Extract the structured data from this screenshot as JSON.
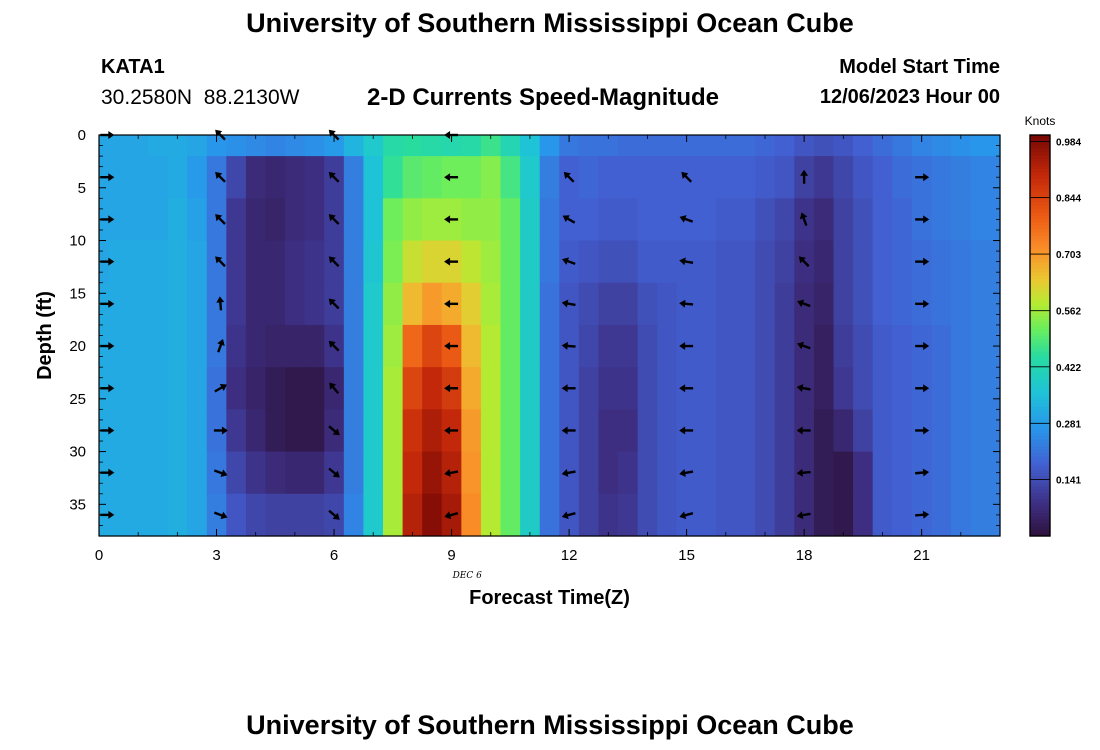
{
  "header": {
    "title": "University of Southern Mississippi Ocean Cube",
    "station_id": "KATA1",
    "station_coords": "30.2580N  88.2130W",
    "product": "2-D Currents Speed-Magnitude",
    "model_start_label": "Model Start Time",
    "model_start_value": "12/06/2023 Hour 00"
  },
  "footer": {
    "title": "University of Southern Mississippi Ocean Cube"
  },
  "chart_data": {
    "type": "heatmap",
    "xlabel": "Forecast Time(Z)",
    "ylabel": "Depth (ft)",
    "date_label": "DEC 6",
    "xlim": [
      0,
      23
    ],
    "ylim": [
      0,
      38
    ],
    "x_ticks": [
      0,
      3,
      6,
      9,
      12,
      15,
      18,
      21
    ],
    "y_ticks": [
      0,
      5,
      10,
      15,
      20,
      25,
      30,
      35
    ],
    "colorbar": {
      "units": "Knots",
      "min": 0,
      "max": 1.0,
      "ticks": [
        0.141,
        0.281,
        0.422,
        0.562,
        0.703,
        0.844,
        0.984
      ]
    },
    "hours": [
      0,
      0.5,
      1,
      1.5,
      2,
      2.5,
      3,
      3.5,
      4,
      4.5,
      5,
      5.5,
      6,
      6.5,
      7,
      7.5,
      8,
      8.5,
      9,
      9.5,
      10,
      10.5,
      11,
      11.5,
      12,
      12.5,
      13,
      13.5,
      14,
      14.5,
      15,
      15.5,
      16,
      16.5,
      17,
      17.5,
      18,
      18.5,
      19,
      19.5,
      20,
      20.5,
      21,
      21.5,
      22,
      22.5
    ],
    "depths": [
      0,
      4,
      8,
      12,
      16,
      20,
      24,
      28,
      32,
      36
    ],
    "speed_knots": [
      [
        0.3,
        0.3,
        0.3,
        0.31,
        0.31,
        0.3,
        0.27,
        0.26,
        0.25,
        0.24,
        0.25,
        0.26,
        0.28,
        0.33,
        0.38,
        0.44,
        0.45,
        0.44,
        0.43,
        0.44,
        0.47,
        0.42,
        0.36,
        0.27,
        0.22,
        0.21,
        0.21,
        0.2,
        0.2,
        0.2,
        0.2,
        0.2,
        0.2,
        0.2,
        0.19,
        0.18,
        0.16,
        0.15,
        0.16,
        0.18,
        0.2,
        0.22,
        0.24,
        0.25,
        0.26,
        0.27
      ],
      [
        0.3,
        0.3,
        0.3,
        0.3,
        0.31,
        0.28,
        0.22,
        0.13,
        0.07,
        0.06,
        0.07,
        0.08,
        0.11,
        0.23,
        0.36,
        0.46,
        0.5,
        0.51,
        0.52,
        0.52,
        0.54,
        0.48,
        0.38,
        0.23,
        0.18,
        0.19,
        0.18,
        0.18,
        0.18,
        0.18,
        0.18,
        0.18,
        0.18,
        0.18,
        0.17,
        0.16,
        0.12,
        0.1,
        0.13,
        0.16,
        0.18,
        0.2,
        0.21,
        0.22,
        0.23,
        0.24
      ],
      [
        0.3,
        0.3,
        0.3,
        0.3,
        0.32,
        0.29,
        0.22,
        0.1,
        0.06,
        0.05,
        0.07,
        0.08,
        0.11,
        0.23,
        0.36,
        0.52,
        0.55,
        0.56,
        0.56,
        0.55,
        0.55,
        0.51,
        0.39,
        0.22,
        0.18,
        0.18,
        0.17,
        0.17,
        0.18,
        0.18,
        0.18,
        0.18,
        0.17,
        0.17,
        0.15,
        0.13,
        0.09,
        0.07,
        0.12,
        0.15,
        0.18,
        0.19,
        0.21,
        0.22,
        0.23,
        0.24
      ],
      [
        0.3,
        0.31,
        0.31,
        0.31,
        0.32,
        0.3,
        0.22,
        0.1,
        0.06,
        0.06,
        0.08,
        0.09,
        0.11,
        0.23,
        0.37,
        0.53,
        0.6,
        0.62,
        0.62,
        0.59,
        0.56,
        0.51,
        0.39,
        0.22,
        0.17,
        0.16,
        0.15,
        0.15,
        0.17,
        0.17,
        0.17,
        0.17,
        0.16,
        0.16,
        0.14,
        0.12,
        0.08,
        0.06,
        0.12,
        0.15,
        0.18,
        0.19,
        0.2,
        0.21,
        0.22,
        0.23
      ],
      [
        0.31,
        0.31,
        0.31,
        0.31,
        0.32,
        0.3,
        0.22,
        0.1,
        0.06,
        0.06,
        0.08,
        0.09,
        0.11,
        0.23,
        0.38,
        0.55,
        0.66,
        0.7,
        0.68,
        0.63,
        0.57,
        0.51,
        0.39,
        0.21,
        0.16,
        0.14,
        0.12,
        0.12,
        0.15,
        0.16,
        0.17,
        0.17,
        0.16,
        0.16,
        0.14,
        0.11,
        0.07,
        0.05,
        0.12,
        0.15,
        0.18,
        0.19,
        0.2,
        0.21,
        0.22,
        0.23
      ],
      [
        0.31,
        0.31,
        0.31,
        0.31,
        0.32,
        0.3,
        0.22,
        0.09,
        0.06,
        0.05,
        0.05,
        0.05,
        0.09,
        0.23,
        0.38,
        0.56,
        0.78,
        0.84,
        0.8,
        0.66,
        0.58,
        0.51,
        0.39,
        0.21,
        0.16,
        0.13,
        0.1,
        0.1,
        0.14,
        0.16,
        0.17,
        0.17,
        0.16,
        0.16,
        0.14,
        0.11,
        0.07,
        0.04,
        0.11,
        0.14,
        0.17,
        0.18,
        0.19,
        0.2,
        0.22,
        0.23
      ],
      [
        0.31,
        0.31,
        0.31,
        0.31,
        0.32,
        0.3,
        0.21,
        0.08,
        0.05,
        0.03,
        0.02,
        0.02,
        0.06,
        0.23,
        0.38,
        0.57,
        0.84,
        0.9,
        0.86,
        0.68,
        0.58,
        0.51,
        0.39,
        0.21,
        0.16,
        0.12,
        0.09,
        0.09,
        0.14,
        0.16,
        0.17,
        0.17,
        0.16,
        0.16,
        0.14,
        0.11,
        0.07,
        0.04,
        0.1,
        0.14,
        0.17,
        0.18,
        0.19,
        0.2,
        0.22,
        0.23
      ],
      [
        0.31,
        0.31,
        0.31,
        0.31,
        0.32,
        0.3,
        0.21,
        0.1,
        0.06,
        0.03,
        0.02,
        0.02,
        0.07,
        0.23,
        0.38,
        0.57,
        0.88,
        0.93,
        0.9,
        0.7,
        0.58,
        0.51,
        0.39,
        0.21,
        0.16,
        0.12,
        0.08,
        0.08,
        0.14,
        0.16,
        0.17,
        0.17,
        0.16,
        0.16,
        0.14,
        0.11,
        0.07,
        0.03,
        0.06,
        0.12,
        0.17,
        0.18,
        0.19,
        0.2,
        0.22,
        0.23
      ],
      [
        0.31,
        0.31,
        0.31,
        0.31,
        0.32,
        0.3,
        0.22,
        0.13,
        0.09,
        0.07,
        0.06,
        0.06,
        0.1,
        0.23,
        0.38,
        0.57,
        0.9,
        0.96,
        0.92,
        0.71,
        0.58,
        0.51,
        0.39,
        0.21,
        0.16,
        0.12,
        0.08,
        0.09,
        0.14,
        0.16,
        0.17,
        0.17,
        0.16,
        0.16,
        0.14,
        0.11,
        0.07,
        0.03,
        0.02,
        0.08,
        0.17,
        0.18,
        0.19,
        0.2,
        0.22,
        0.23
      ],
      [
        0.31,
        0.31,
        0.31,
        0.31,
        0.32,
        0.3,
        0.23,
        0.16,
        0.13,
        0.12,
        0.12,
        0.12,
        0.13,
        0.24,
        0.38,
        0.57,
        0.92,
        0.98,
        0.94,
        0.72,
        0.58,
        0.51,
        0.39,
        0.21,
        0.16,
        0.12,
        0.09,
        0.1,
        0.14,
        0.16,
        0.17,
        0.17,
        0.16,
        0.16,
        0.14,
        0.11,
        0.07,
        0.03,
        0.02,
        0.08,
        0.17,
        0.18,
        0.19,
        0.2,
        0.22,
        0.23
      ]
    ],
    "vector_hours": [
      0.2,
      3.1,
      6.0,
      9.0,
      12.0,
      15.0,
      18.0,
      21.0
    ],
    "vector_depths": [
      0,
      4,
      8,
      12,
      16,
      20,
      24,
      28,
      32,
      36
    ],
    "vector_direction_deg": [
      [
        0,
        135,
        135,
        180,
        null,
        null,
        null,
        null
      ],
      [
        0,
        135,
        135,
        180,
        135,
        135,
        90,
        0
      ],
      [
        0,
        135,
        135,
        180,
        150,
        160,
        110,
        0
      ],
      [
        0,
        135,
        135,
        180,
        160,
        170,
        135,
        0
      ],
      [
        0,
        95,
        135,
        180,
        170,
        175,
        160,
        0
      ],
      [
        0,
        70,
        135,
        180,
        175,
        180,
        160,
        0
      ],
      [
        0,
        30,
        130,
        180,
        180,
        180,
        170,
        0
      ],
      [
        0,
        0,
        320,
        180,
        180,
        180,
        180,
        0
      ],
      [
        0,
        340,
        320,
        190,
        190,
        190,
        185,
        5
      ],
      [
        0,
        340,
        320,
        195,
        195,
        195,
        190,
        5
      ]
    ]
  }
}
